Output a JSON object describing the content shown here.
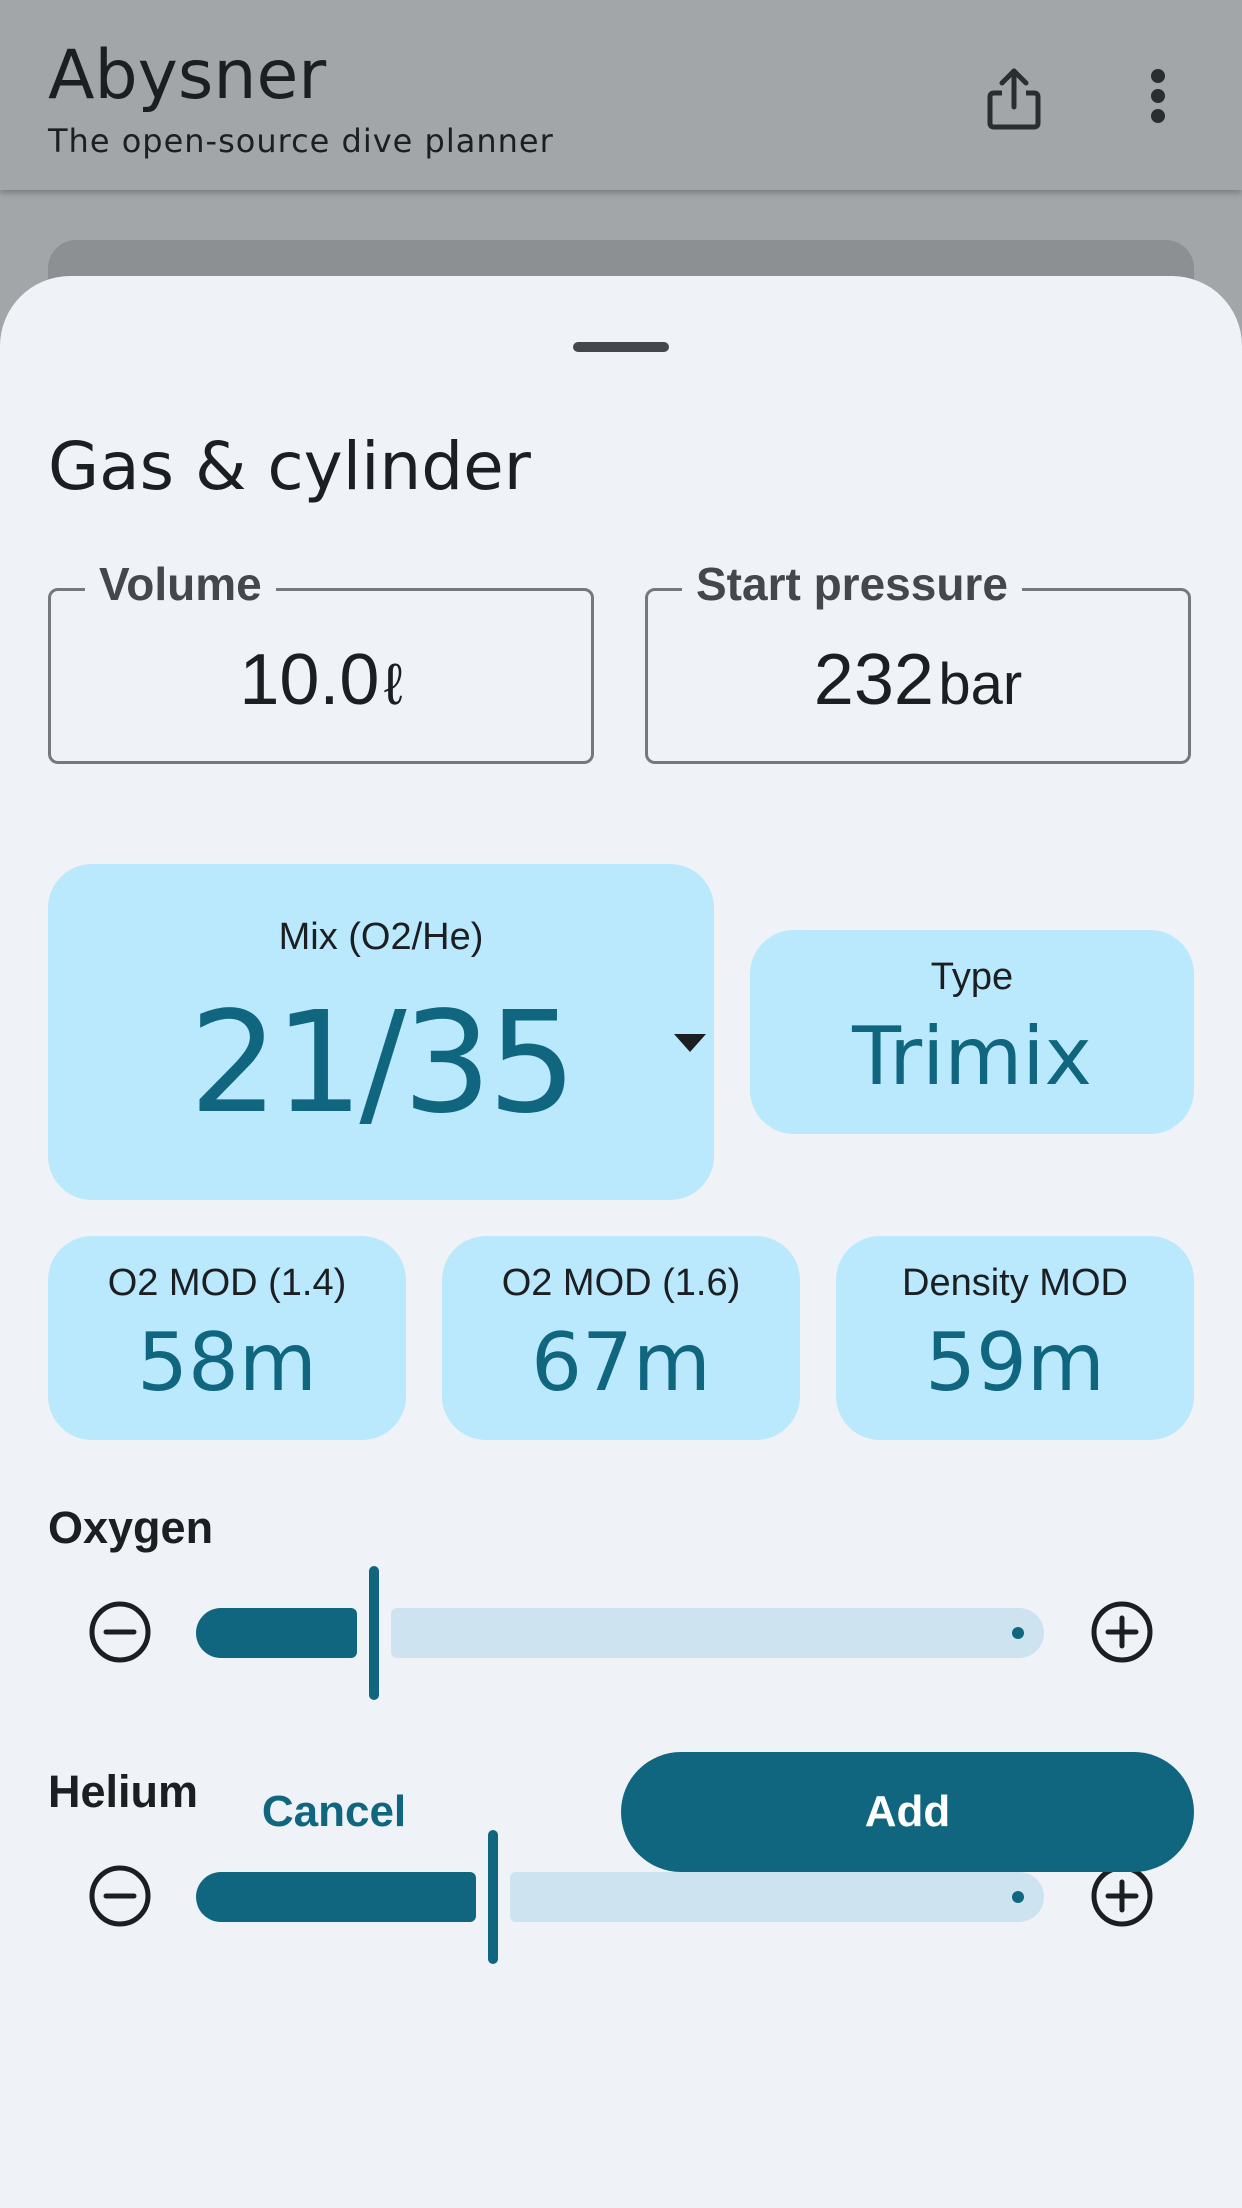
{
  "app": {
    "title": "Abysner",
    "subtitle": "The open-source dive planner",
    "share_icon": "share-icon",
    "more_icon": "more-vert-icon"
  },
  "sheet": {
    "title": "Gas & cylinder",
    "volume": {
      "label": "Volume",
      "value": "10.0",
      "unit": "ℓ"
    },
    "start_pressure": {
      "label": "Start pressure",
      "value": "232",
      "unit": "bar"
    },
    "mix": {
      "label": "Mix (O2/He)",
      "value": "21/35"
    },
    "type": {
      "label": "Type",
      "value": "Trimix"
    },
    "mods": [
      {
        "label": "O2 MOD (1.4)",
        "value": "58m"
      },
      {
        "label": "O2 MOD (1.6)",
        "value": "67m"
      },
      {
        "label": "Density MOD",
        "value": "59m"
      }
    ],
    "oxygen": {
      "label": "Oxygen",
      "level": 0.21
    },
    "helium": {
      "label": "Helium",
      "level": 0.35
    },
    "cancel_label": "Cancel",
    "add_label": "Add"
  },
  "colors": {
    "primary": "#0f667e",
    "tile_bg": "#bae8fc",
    "sheet_bg": "#eff3f7",
    "scrim": "#a3a6a9"
  }
}
